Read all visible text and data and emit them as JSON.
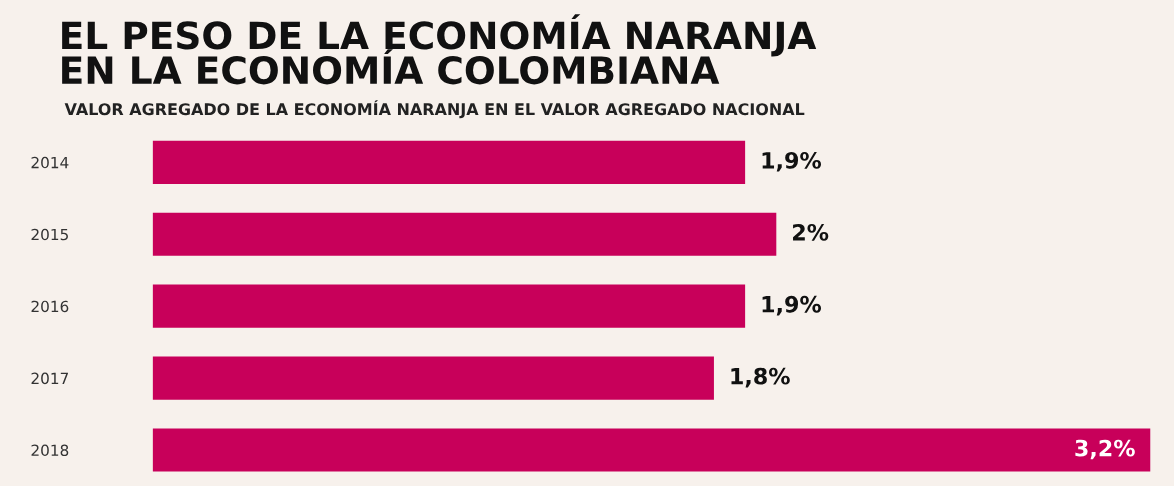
{
  "chart_data": {
    "type": "bar",
    "orientation": "horizontal",
    "title": "EL PESO DE LA ECONOMÍA NARANJA\nEN LA ECONOMÍA COLOMBIANA",
    "subtitle": "VALOR AGREGADO DE LA ECONOMÍA NARANJA EN EL VALOR AGREGADO NACIONAL",
    "categories": [
      "2014",
      "2015",
      "2016",
      "2017",
      "2018"
    ],
    "values": [
      1.9,
      2,
      1.9,
      1.8,
      3.2
    ],
    "value_labels": [
      "1,9%",
      "2%",
      "1,9%",
      "1,8%",
      "3,2%"
    ],
    "color": "#c8005a",
    "grid": false,
    "legend": false
  }
}
